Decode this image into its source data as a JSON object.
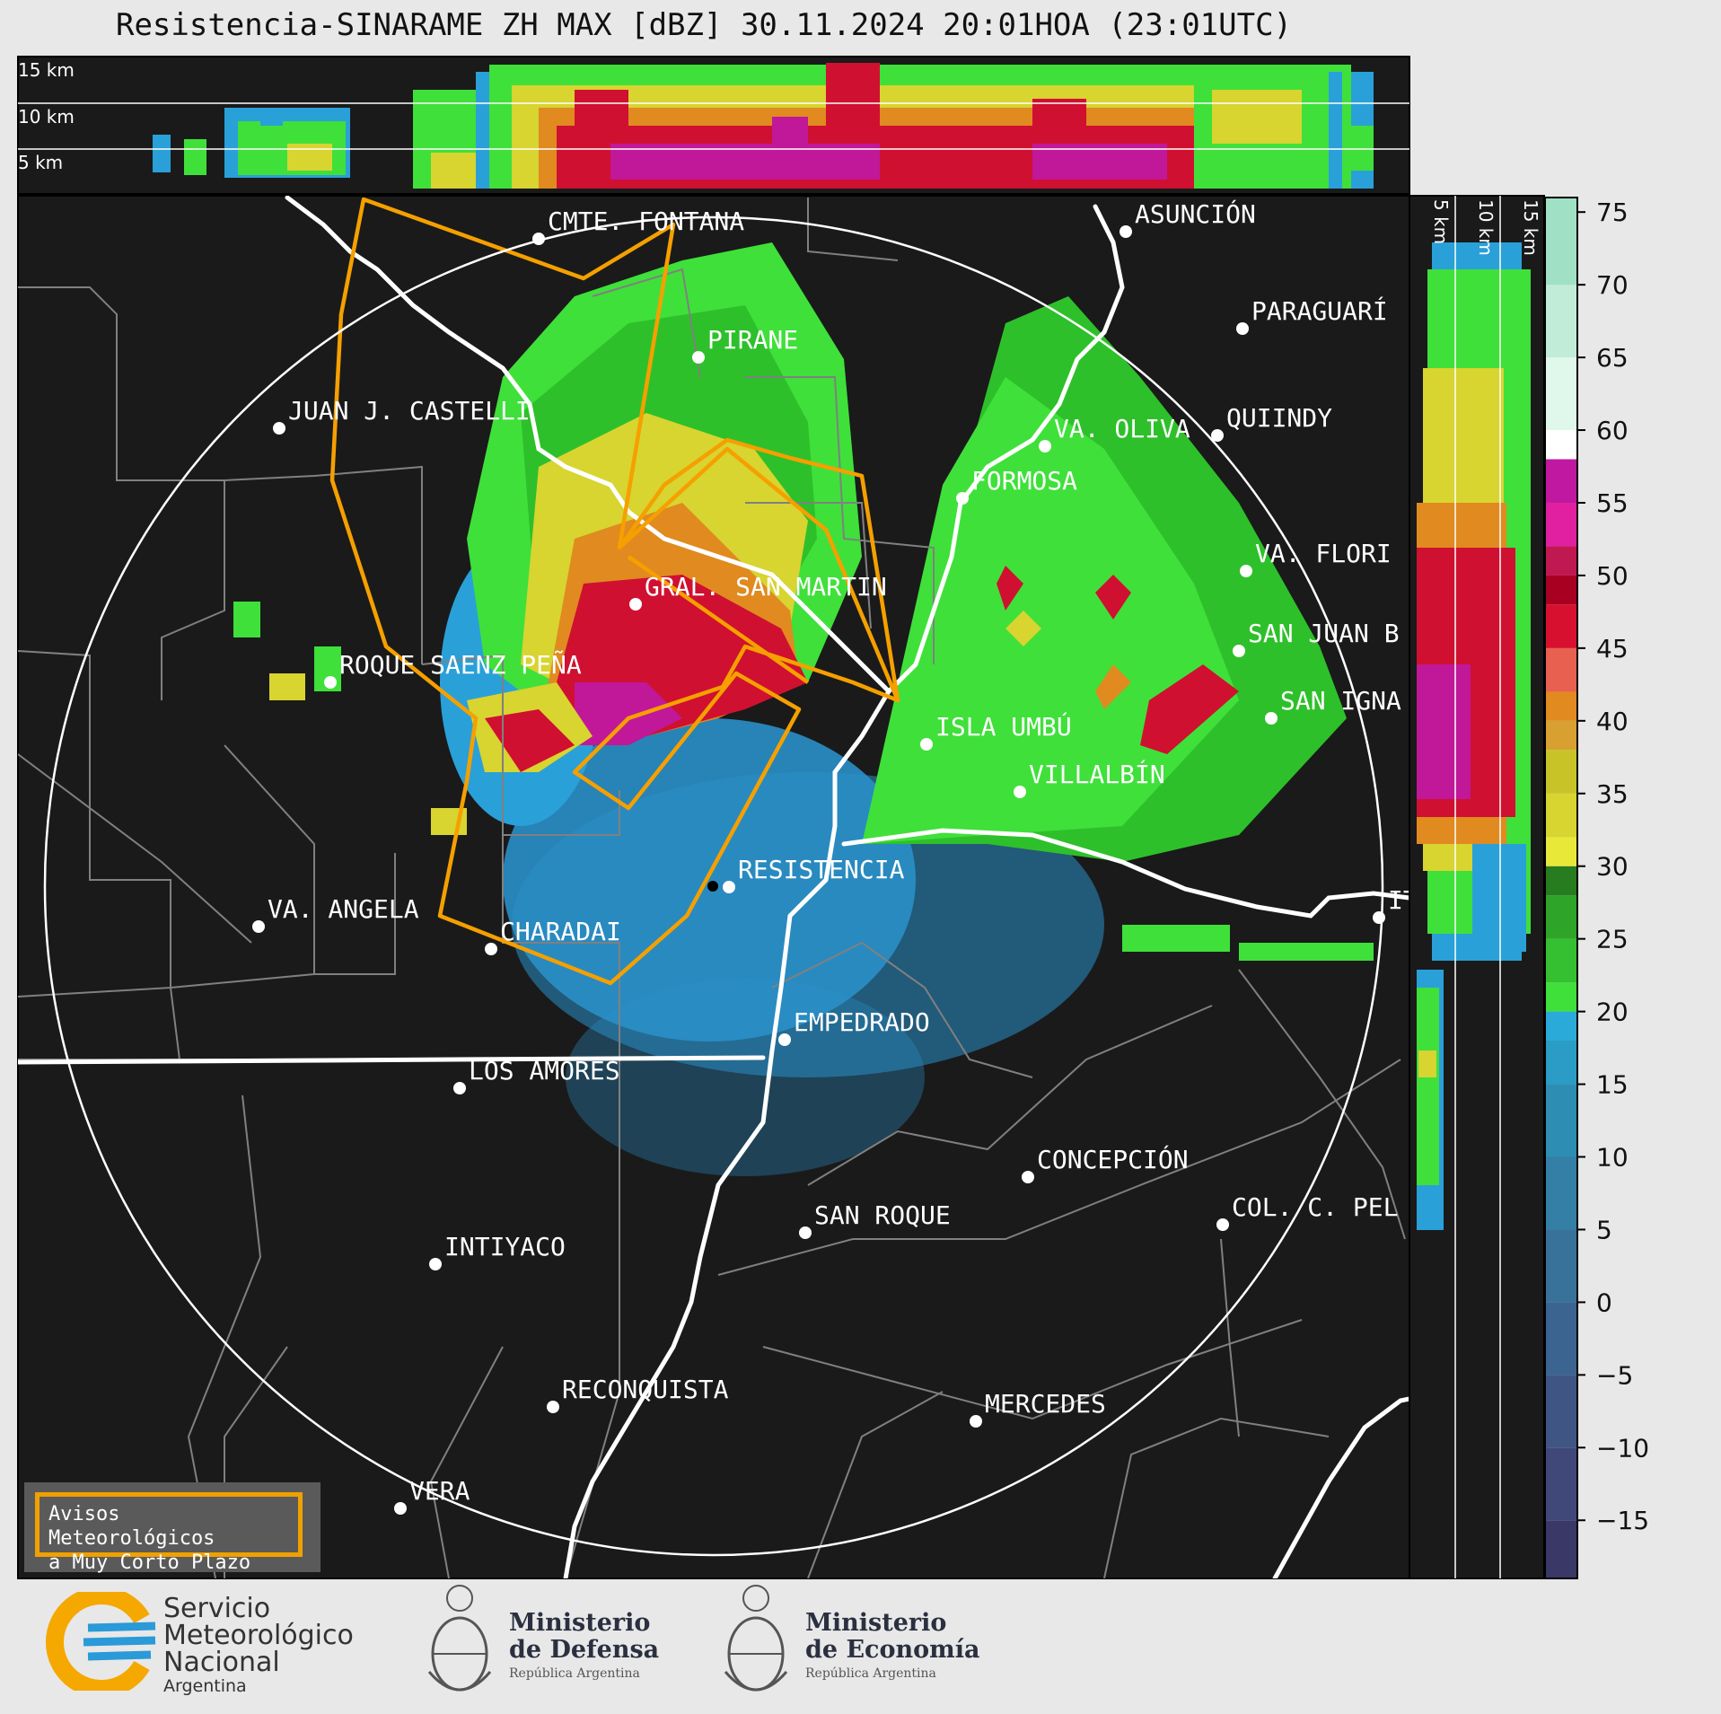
{
  "title": "Resistencia-SINARAME ZH MAX [dBZ] 30.11.2024 20:01HOA (23:01UTC)",
  "top_panel": {
    "altitude_labels": [
      "15 km",
      "10 km",
      "5 km"
    ]
  },
  "side_panel": {
    "altitude_labels": [
      "5 km",
      "10 km",
      "15 km"
    ]
  },
  "colorbar": {
    "unit": "dBZ",
    "ticks": [
      "75",
      "70",
      "65",
      "60",
      "55",
      "50",
      "45",
      "40",
      "35",
      "30",
      "25",
      "20",
      "15",
      "10",
      "5",
      "0",
      "−5",
      "−10",
      "−15"
    ],
    "range": [
      -19,
      76
    ]
  },
  "cities": [
    {
      "name": "ASUNCIÓN"
    },
    {
      "name": "CMTE. FONTANA"
    },
    {
      "name": "PARAGUARÍ"
    },
    {
      "name": "PIRANE"
    },
    {
      "name": "JUAN J. CASTELLI"
    },
    {
      "name": "QUIINDY"
    },
    {
      "name": "VA. OLIVA"
    },
    {
      "name": "FORMOSA"
    },
    {
      "name": "VA. FLORI"
    },
    {
      "name": "GRAL. SAN MARTIN"
    },
    {
      "name": "SAN JUAN B"
    },
    {
      "name": "ROQUE SAENZ PEÑA"
    },
    {
      "name": "SAN IGNA"
    },
    {
      "name": "ISLA UMBÚ"
    },
    {
      "name": "VILLALBÍN"
    },
    {
      "name": "RESISTENCIA"
    },
    {
      "name": "VA. ANGELA"
    },
    {
      "name": "CHARADAI"
    },
    {
      "name": "IT"
    },
    {
      "name": "EMPEDRADO"
    },
    {
      "name": "LOS AMORES"
    },
    {
      "name": "CONCEPCIÓN"
    },
    {
      "name": "SAN ROQUE"
    },
    {
      "name": "COL. C. PEL"
    },
    {
      "name": "INTIYACO"
    },
    {
      "name": "RECONQUISTA"
    },
    {
      "name": "MERCEDES"
    },
    {
      "name": "VERA"
    }
  ],
  "legend": {
    "line1": "Avisos Meteorológicos",
    "line2": "a Muy Corto Plazo"
  },
  "logos": {
    "smn": {
      "line1": "Servicio",
      "line2": "Meteorológico",
      "line3": "Nacional",
      "line4": "Argentina"
    },
    "defensa": {
      "line1": "Ministerio",
      "line2": "de Defensa",
      "line3": "República Argentina"
    },
    "economia": {
      "line1": "Ministerio",
      "line2": "de Economía",
      "line3": "República Argentina"
    }
  },
  "colors": {
    "map_background": "#1a1a1a",
    "warning_polygon": "#f5a000",
    "range_ring": "#ffffff",
    "rivers": "#ffffff",
    "borders": "#808080"
  }
}
